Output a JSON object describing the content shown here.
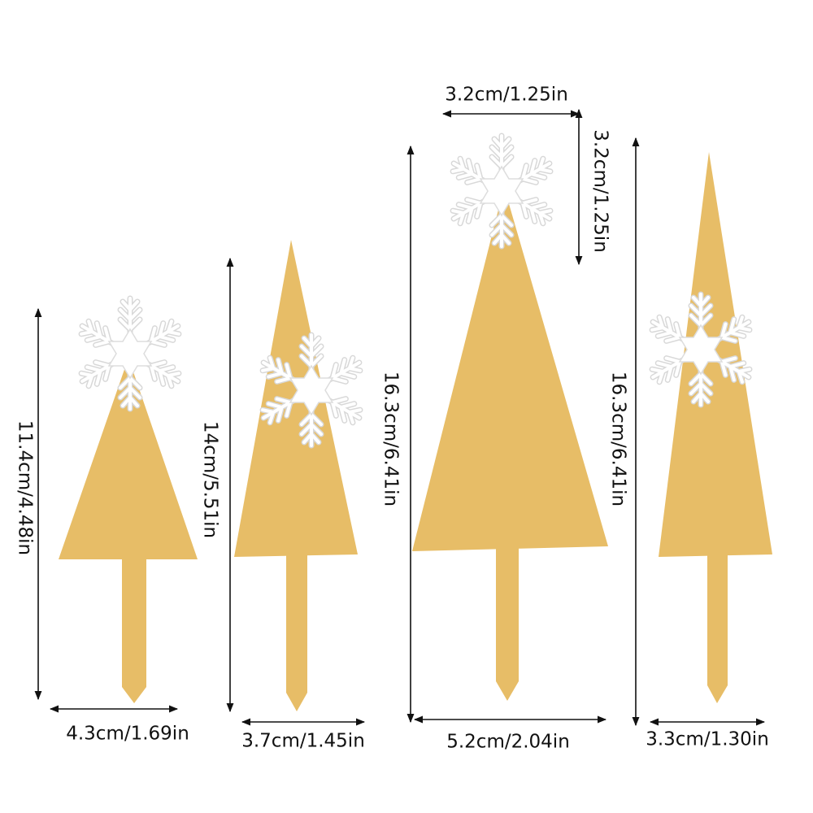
{
  "items": [
    {
      "height": "11.4cm/4.48in",
      "width": "4.3cm/1.69in"
    },
    {
      "height": "14cm/5.51in",
      "width": "3.7cm/1.45in"
    },
    {
      "height": "16.3cm/6.41in",
      "width": "5.2cm/2.04in"
    },
    {
      "height": "16.3cm/6.41in",
      "width": "3.3cm/1.30in"
    }
  ],
  "topper": {
    "width": "3.2cm/1.25in",
    "height": "3.2cm/1.25in"
  }
}
